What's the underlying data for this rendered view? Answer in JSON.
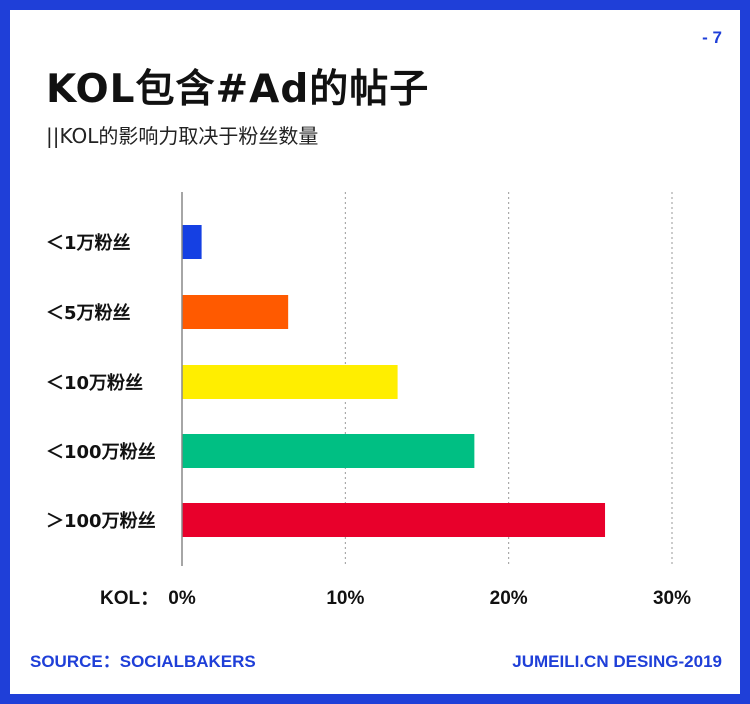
{
  "page_number": "- 7",
  "title": "KOL包含#Ad的帖子",
  "subtitle": "||KOL的影响力取决于粉丝数量",
  "footer": {
    "source": "SOURCE：SOCIALBAKERS",
    "credit": "JUMEILI.CN DESING-2019"
  },
  "colors": {
    "frame": "#1f3fd8",
    "accent_text": "#1f3fd8"
  },
  "chart_data": {
    "type": "bar",
    "orientation": "horizontal",
    "categories": [
      "＜1万粉丝",
      "＜5万粉丝",
      "＜10万粉丝",
      "＜100万粉丝",
      "＞100万粉丝"
    ],
    "values": [
      1.2,
      6.5,
      13.2,
      17.9,
      25.9
    ],
    "colors": [
      "#1540e3",
      "#ff5a00",
      "#ffee00",
      "#00bf83",
      "#e8002b"
    ],
    "x_axis_label": "KOL：",
    "x_ticks": [
      0,
      10,
      20,
      30
    ],
    "x_tick_labels": [
      "0%",
      "10%",
      "20%",
      "30%"
    ],
    "xlim": [
      0,
      30
    ],
    "grid": "vertical dashed"
  }
}
